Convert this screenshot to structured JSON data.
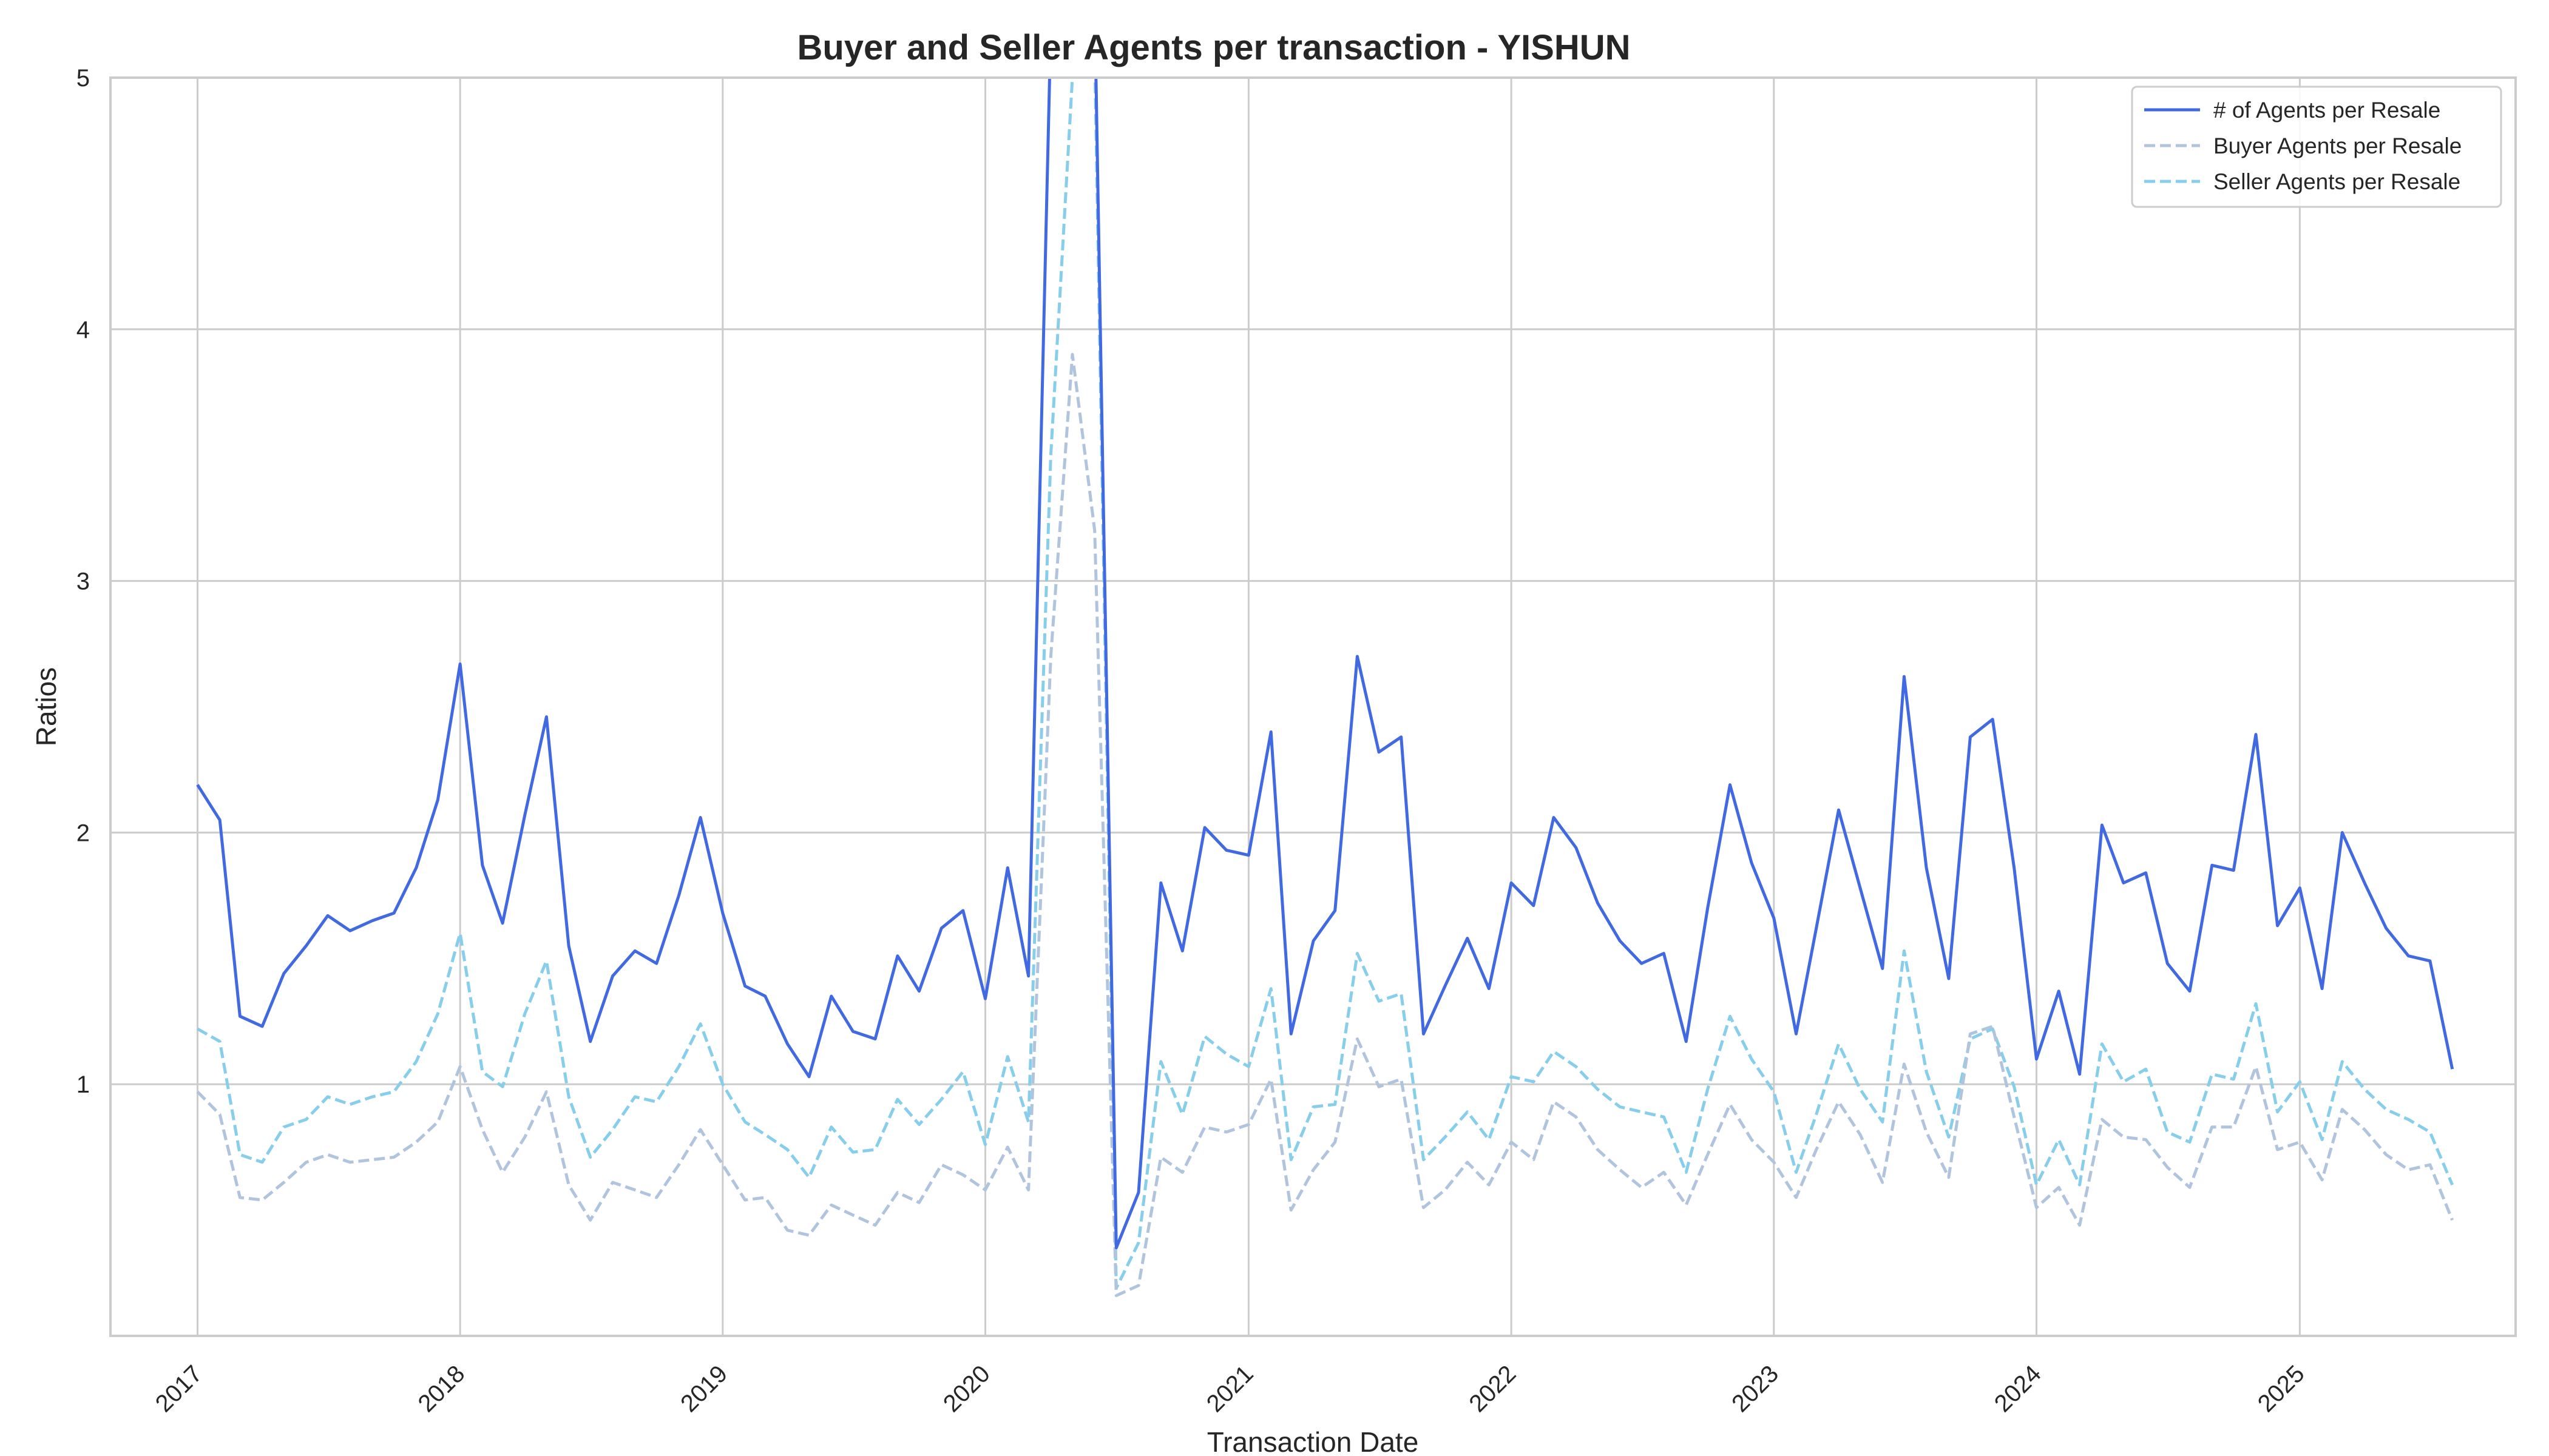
{
  "chart_data": {
    "type": "line",
    "title": "Buyer and Seller Agents per transaction - YISHUN",
    "xlabel": "Transaction Date",
    "ylabel": "Ratios",
    "ylim": [
      0,
      5
    ],
    "xlim": [
      "2016-09-02",
      "2025-10-28"
    ],
    "yticks": [
      1,
      2,
      3,
      4,
      5
    ],
    "xticks": [
      "2017",
      "2018",
      "2019",
      "2020",
      "2021",
      "2022",
      "2023",
      "2024",
      "2025"
    ],
    "grid": true,
    "legend_position": "top-right",
    "x_start": "2017-01",
    "x_frequency": "monthly",
    "series": [
      {
        "name": "# of Agents per Resale",
        "color": "#4169e1",
        "style": "solid",
        "values": [
          2.19,
          2.05,
          1.27,
          1.23,
          1.44,
          1.55,
          1.67,
          1.61,
          1.65,
          1.68,
          1.86,
          2.13,
          2.67,
          1.87,
          1.64,
          2.07,
          2.46,
          1.55,
          1.17,
          1.43,
          1.53,
          1.48,
          1.75,
          2.06,
          1.68,
          1.39,
          1.35,
          1.16,
          1.03,
          1.35,
          1.21,
          1.18,
          1.51,
          1.37,
          1.62,
          1.69,
          1.34,
          1.86,
          1.43,
          5.2,
          5.9,
          5.3,
          0.35,
          0.57,
          1.8,
          1.53,
          2.02,
          1.93,
          1.91,
          2.4,
          1.2,
          1.57,
          1.69,
          2.7,
          2.32,
          2.38,
          1.2,
          1.39,
          1.58,
          1.38,
          1.8,
          1.71,
          2.06,
          1.94,
          1.72,
          1.57,
          1.48,
          1.52,
          1.17,
          1.7,
          2.19,
          1.88,
          1.66,
          1.2,
          1.62,
          2.09,
          1.78,
          1.46,
          2.62,
          1.86,
          1.42,
          2.38,
          2.45,
          1.86,
          1.1,
          1.37,
          1.04,
          2.03,
          1.8,
          1.84,
          1.48,
          1.37,
          1.87,
          1.85,
          2.39,
          1.63,
          1.78,
          1.38,
          2.0,
          1.8,
          1.62,
          1.51,
          1.49,
          1.06
        ]
      },
      {
        "name": "Buyer Agents per Resale",
        "color": "#b0c4de",
        "style": "dashed",
        "values": [
          0.97,
          0.88,
          0.55,
          0.54,
          0.61,
          0.69,
          0.72,
          0.69,
          0.7,
          0.71,
          0.77,
          0.85,
          1.07,
          0.82,
          0.65,
          0.79,
          0.97,
          0.6,
          0.46,
          0.61,
          0.58,
          0.55,
          0.68,
          0.82,
          0.68,
          0.54,
          0.55,
          0.42,
          0.4,
          0.52,
          0.48,
          0.44,
          0.57,
          0.53,
          0.68,
          0.64,
          0.58,
          0.75,
          0.58,
          2.7,
          3.9,
          3.2,
          0.16,
          0.2,
          0.71,
          0.65,
          0.83,
          0.81,
          0.84,
          1.02,
          0.5,
          0.66,
          0.77,
          1.18,
          0.99,
          1.02,
          0.51,
          0.58,
          0.69,
          0.6,
          0.77,
          0.7,
          0.93,
          0.87,
          0.74,
          0.66,
          0.59,
          0.65,
          0.52,
          0.72,
          0.92,
          0.78,
          0.69,
          0.55,
          0.74,
          0.93,
          0.8,
          0.61,
          1.08,
          0.81,
          0.63,
          1.2,
          1.23,
          0.87,
          0.51,
          0.59,
          0.44,
          0.86,
          0.79,
          0.78,
          0.67,
          0.59,
          0.83,
          0.83,
          1.07,
          0.74,
          0.77,
          0.62,
          0.9,
          0.82,
          0.72,
          0.66,
          0.68,
          0.46
        ]
      },
      {
        "name": "Seller Agents per Resale",
        "color": "#87ceeb",
        "style": "dashed",
        "values": [
          1.22,
          1.17,
          0.72,
          0.69,
          0.83,
          0.86,
          0.95,
          0.92,
          0.95,
          0.97,
          1.09,
          1.28,
          1.6,
          1.05,
          0.99,
          1.28,
          1.49,
          0.95,
          0.71,
          0.82,
          0.95,
          0.93,
          1.07,
          1.24,
          1.0,
          0.85,
          0.8,
          0.74,
          0.63,
          0.83,
          0.73,
          0.74,
          0.94,
          0.84,
          0.94,
          1.05,
          0.76,
          1.11,
          0.85,
          3.5,
          5.0,
          5.1,
          0.19,
          0.37,
          1.09,
          0.88,
          1.19,
          1.12,
          1.07,
          1.38,
          0.7,
          0.91,
          0.92,
          1.52,
          1.33,
          1.36,
          0.7,
          0.79,
          0.89,
          0.78,
          1.03,
          1.01,
          1.13,
          1.07,
          0.98,
          0.91,
          0.89,
          0.87,
          0.65,
          0.98,
          1.27,
          1.1,
          0.97,
          0.65,
          0.88,
          1.16,
          0.98,
          0.85,
          1.53,
          1.05,
          0.79,
          1.18,
          1.22,
          0.99,
          0.6,
          0.78,
          0.6,
          1.16,
          1.01,
          1.06,
          0.81,
          0.77,
          1.04,
          1.02,
          1.32,
          0.89,
          1.01,
          0.78,
          1.09,
          0.98,
          0.9,
          0.86,
          0.81,
          0.6
        ]
      }
    ]
  }
}
